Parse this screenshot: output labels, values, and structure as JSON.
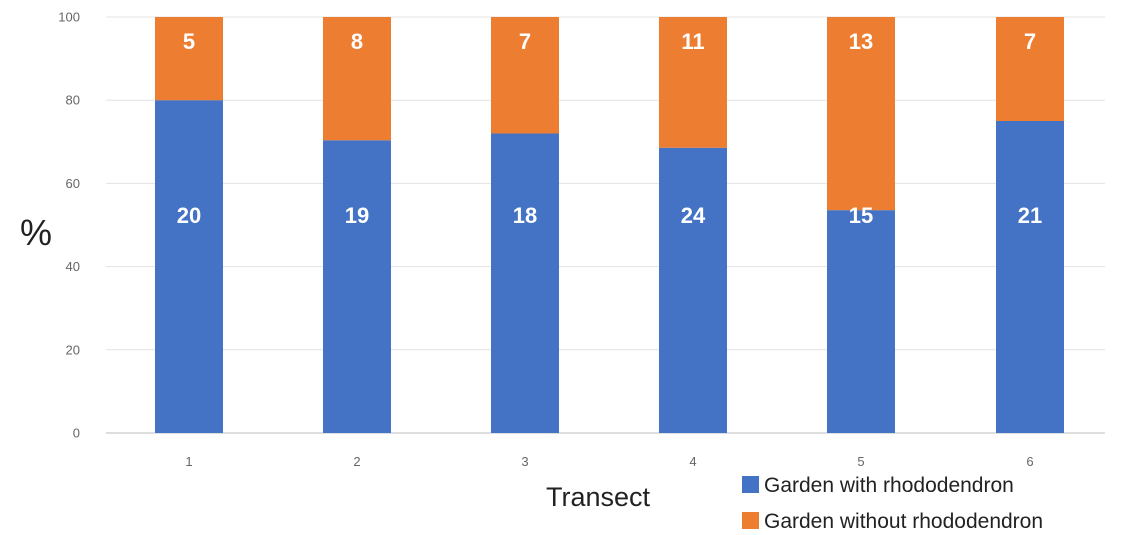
{
  "chart_data": {
    "type": "bar",
    "stacked": true,
    "normalized_percent": true,
    "ylabel": "%",
    "xlabel": "Transect",
    "ylim": [
      0,
      100
    ],
    "y_ticks": [
      "0",
      "20",
      "40",
      "60",
      "80",
      "100"
    ],
    "categories": [
      "1",
      "2",
      "3",
      "4",
      "5",
      "6"
    ],
    "grid": true,
    "legend_position": "bottom-right",
    "series": [
      {
        "name": "Garden with rhododendron",
        "color": "#4472c4",
        "values": [
          20,
          19,
          18,
          24,
          15,
          21
        ],
        "labels": [
          "20",
          "19",
          "18",
          "24",
          "15",
          "21"
        ]
      },
      {
        "name": "Garden without rhododendron",
        "color": "#ed7d31",
        "values": [
          5,
          8,
          7,
          11,
          13,
          7
        ],
        "labels": [
          "5",
          "8",
          "7",
          "11",
          "13",
          "7"
        ]
      }
    ]
  }
}
